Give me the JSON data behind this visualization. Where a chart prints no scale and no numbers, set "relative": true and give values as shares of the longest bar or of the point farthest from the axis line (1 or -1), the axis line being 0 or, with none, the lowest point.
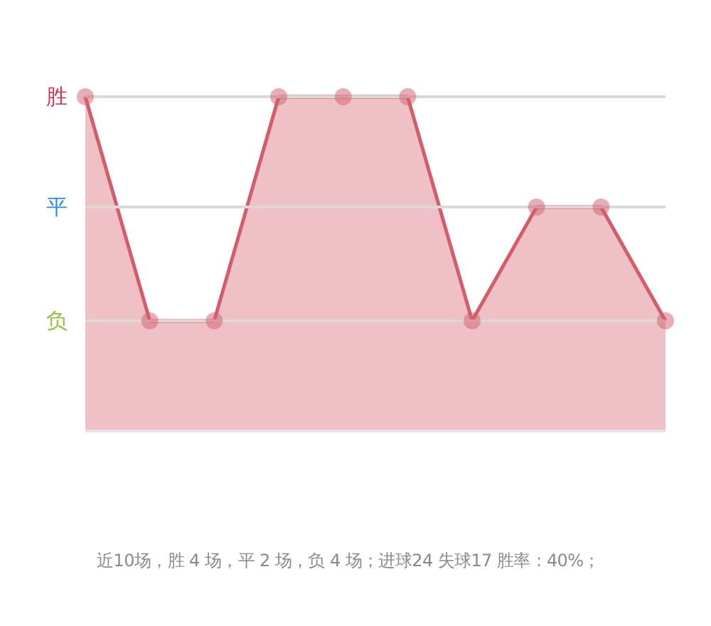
{
  "chart_data": {
    "type": "area",
    "relative": true,
    "categories": [
      null,
      null,
      null,
      null,
      null,
      null,
      null,
      null,
      null,
      null
    ],
    "series": [
      {
        "color": "#d45d6b",
        "values": [
          1,
          0.33,
          0.33,
          1,
          1,
          1,
          0.33,
          0.67,
          0.67,
          0.33
        ]
      }
    ],
    "ref_lines": [
      {
        "axis": "y",
        "value": 1,
        "label": "胜",
        "color": "#d9d9d9"
      },
      {
        "axis": "y",
        "value": 0.67,
        "label": "平",
        "color": "#d9d9d9"
      },
      {
        "axis": "y",
        "value": 0.33,
        "label": "负",
        "color": "#d9d9d9"
      }
    ],
    "marker": "circle",
    "line_style": "solid",
    "annotations": [
      "近10场，胜 4 场，平 2 场，负 4 场；进球24 失球17 胜率：40%；"
    ]
  }
}
